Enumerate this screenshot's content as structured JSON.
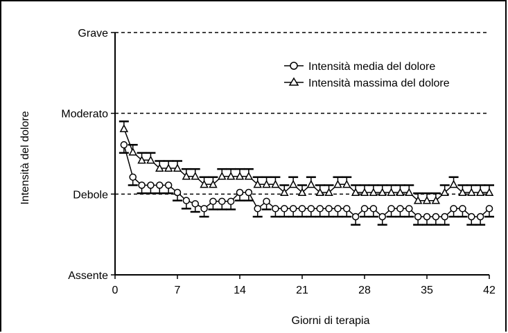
{
  "chart_data": {
    "type": "line",
    "xlabel": "Giorni di terapia",
    "ylabel": "Intensità del dolore",
    "x_ticks": [
      0,
      7,
      14,
      21,
      28,
      35,
      42
    ],
    "xlim": [
      0,
      42
    ],
    "ylim": [
      0,
      3
    ],
    "y_tick_values": [
      0,
      1,
      2,
      3
    ],
    "y_tick_labels": [
      "Assente",
      "Debole",
      "Moderato",
      "Grave"
    ],
    "reference_lines": [
      1,
      2,
      3
    ],
    "legend_position": "top-right",
    "series": [
      {
        "name": "Intensità media del dolore",
        "marker": "circle",
        "error_direction": "down",
        "points": [
          [
            1,
            1.61,
            0.1
          ],
          [
            2,
            1.21,
            0.1
          ],
          [
            3,
            1.11,
            0.1
          ],
          [
            4,
            1.11,
            0.1
          ],
          [
            5,
            1.11,
            0.1
          ],
          [
            6,
            1.11,
            0.1
          ],
          [
            7,
            1.02,
            0.1
          ],
          [
            8,
            0.92,
            0.1
          ],
          [
            9,
            0.88,
            0.1
          ],
          [
            10,
            0.82,
            0.1
          ],
          [
            11,
            0.91,
            0.1
          ],
          [
            12,
            0.91,
            0.1
          ],
          [
            13,
            0.91,
            0.1
          ],
          [
            14,
            1.02,
            0.1
          ],
          [
            15,
            1.02,
            0.1
          ],
          [
            16,
            0.82,
            0.1
          ],
          [
            17,
            0.91,
            0.1
          ],
          [
            18,
            0.82,
            0.1
          ],
          [
            19,
            0.82,
            0.1
          ],
          [
            20,
            0.82,
            0.1
          ],
          [
            21,
            0.82,
            0.1
          ],
          [
            22,
            0.82,
            0.1
          ],
          [
            23,
            0.82,
            0.1
          ],
          [
            24,
            0.82,
            0.1
          ],
          [
            25,
            0.82,
            0.1
          ],
          [
            26,
            0.82,
            0.1
          ],
          [
            27,
            0.72,
            0.1
          ],
          [
            28,
            0.82,
            0.1
          ],
          [
            29,
            0.82,
            0.1
          ],
          [
            30,
            0.72,
            0.1
          ],
          [
            31,
            0.82,
            0.1
          ],
          [
            32,
            0.82,
            0.1
          ],
          [
            33,
            0.82,
            0.1
          ],
          [
            34,
            0.72,
            0.1
          ],
          [
            35,
            0.72,
            0.1
          ],
          [
            36,
            0.72,
            0.1
          ],
          [
            37,
            0.72,
            0.1
          ],
          [
            38,
            0.82,
            0.1
          ],
          [
            39,
            0.82,
            0.1
          ],
          [
            40,
            0.72,
            0.1
          ],
          [
            41,
            0.72,
            0.1
          ],
          [
            42,
            0.82,
            0.1
          ]
        ]
      },
      {
        "name": "Intensità massima del dolore",
        "marker": "triangle",
        "error_direction": "up",
        "points": [
          [
            1,
            1.81,
            0.09
          ],
          [
            2,
            1.52,
            0.09
          ],
          [
            3,
            1.42,
            0.09
          ],
          [
            4,
            1.42,
            0.09
          ],
          [
            5,
            1.32,
            0.09
          ],
          [
            6,
            1.32,
            0.09
          ],
          [
            7,
            1.32,
            0.09
          ],
          [
            8,
            1.22,
            0.09
          ],
          [
            9,
            1.22,
            0.09
          ],
          [
            10,
            1.12,
            0.09
          ],
          [
            11,
            1.12,
            0.09
          ],
          [
            12,
            1.22,
            0.09
          ],
          [
            13,
            1.22,
            0.09
          ],
          [
            14,
            1.22,
            0.09
          ],
          [
            15,
            1.22,
            0.09
          ],
          [
            16,
            1.12,
            0.09
          ],
          [
            17,
            1.12,
            0.09
          ],
          [
            18,
            1.12,
            0.09
          ],
          [
            19,
            1.02,
            0.09
          ],
          [
            20,
            1.12,
            0.09
          ],
          [
            21,
            1.02,
            0.09
          ],
          [
            22,
            1.12,
            0.09
          ],
          [
            23,
            1.02,
            0.09
          ],
          [
            24,
            1.02,
            0.09
          ],
          [
            25,
            1.12,
            0.09
          ],
          [
            26,
            1.12,
            0.09
          ],
          [
            27,
            1.02,
            0.09
          ],
          [
            28,
            1.02,
            0.09
          ],
          [
            29,
            1.02,
            0.09
          ],
          [
            30,
            1.02,
            0.09
          ],
          [
            31,
            1.02,
            0.09
          ],
          [
            32,
            1.02,
            0.09
          ],
          [
            33,
            1.02,
            0.09
          ],
          [
            34,
            0.92,
            0.09
          ],
          [
            35,
            0.92,
            0.09
          ],
          [
            36,
            0.92,
            0.09
          ],
          [
            37,
            1.02,
            0.09
          ],
          [
            38,
            1.12,
            0.09
          ],
          [
            39,
            1.02,
            0.09
          ],
          [
            40,
            1.02,
            0.09
          ],
          [
            41,
            1.02,
            0.09
          ],
          [
            42,
            1.02,
            0.09
          ]
        ]
      }
    ]
  }
}
